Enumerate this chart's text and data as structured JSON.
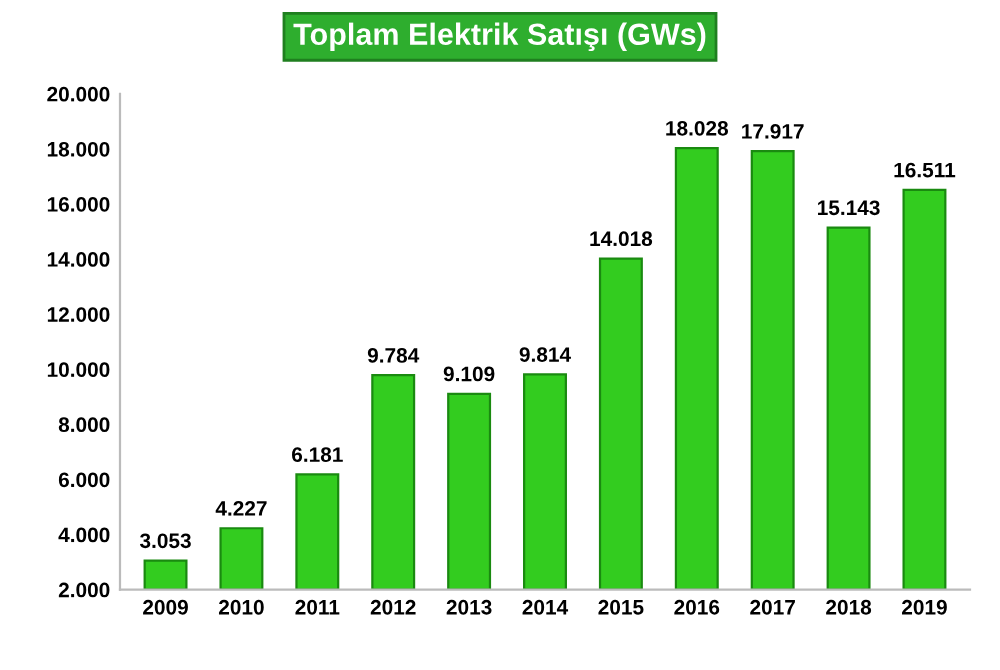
{
  "chart_data": {
    "type": "bar",
    "title": "Toplam Elektrik Satışı (GWs)",
    "categories": [
      "2009",
      "2010",
      "2011",
      "2012",
      "2013",
      "2014",
      "2015",
      "2016",
      "2017",
      "2018",
      "2019"
    ],
    "values": [
      3053,
      4227,
      6181,
      9784,
      9109,
      9814,
      14018,
      18028,
      17917,
      15143,
      16511
    ],
    "value_labels": [
      "3.053",
      "4.227",
      "6.181",
      "9.784",
      "9.109",
      "9.814",
      "14.018",
      "18.028",
      "17.917",
      "15.143",
      "16.511"
    ],
    "color": "#33cc1f",
    "ylim": [
      2000,
      20000
    ],
    "yticks": [
      {
        "value": 2000,
        "label": "2.000"
      },
      {
        "value": 4000,
        "label": "4.000"
      },
      {
        "value": 6000,
        "label": "6.000"
      },
      {
        "value": 8000,
        "label": "8.000"
      },
      {
        "value": 10000,
        "label": "10.000"
      },
      {
        "value": 12000,
        "label": "12.000"
      },
      {
        "value": 14000,
        "label": "14.000"
      },
      {
        "value": 16000,
        "label": "16.000"
      },
      {
        "value": 18000,
        "label": "18.000"
      },
      {
        "value": 20000,
        "label": "20.000"
      }
    ]
  }
}
